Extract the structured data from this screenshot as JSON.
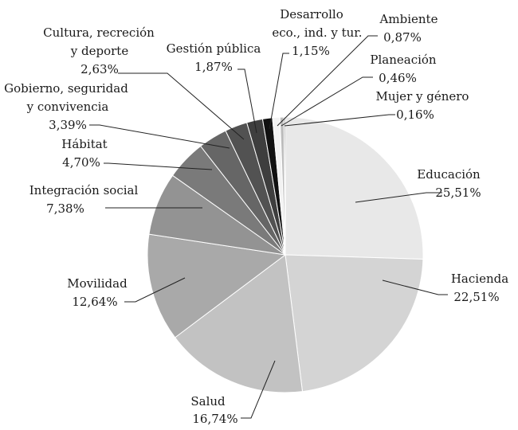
{
  "chart_data": {
    "type": "pie",
    "title": "",
    "slices": [
      {
        "name": "Educación",
        "value": 25.51,
        "label": "25,51%",
        "color": "#e8e8e8"
      },
      {
        "name": "Hacienda",
        "value": 22.51,
        "label": "22,51%",
        "color": "#d4d4d4"
      },
      {
        "name": "Salud",
        "value": 16.74,
        "label": "16,74%",
        "color": "#c2c2c2"
      },
      {
        "name": "Movilidad",
        "value": 12.64,
        "label": "12,64%",
        "color": "#a9a9a9"
      },
      {
        "name": "Integración social",
        "value": 7.38,
        "label": "7,38%",
        "color": "#939393"
      },
      {
        "name": "Hábitat",
        "value": 4.7,
        "label": "4,70%",
        "color": "#7a7a7a"
      },
      {
        "name": "Gobierno, seguridad y convivencia",
        "value": 3.39,
        "label": "3,39%",
        "color": "#666666"
      },
      {
        "name": "Cultura, recreción y deporte",
        "value": 2.63,
        "label": "2,63%",
        "color": "#525252"
      },
      {
        "name": "Gestión pública",
        "value": 1.87,
        "label": "1,87%",
        "color": "#3e3e3e"
      },
      {
        "name": "Desarrollo eco., ind. y tur.",
        "value": 1.15,
        "label": "1,15%",
        "color": "#111111"
      },
      {
        "name": "Ambiente",
        "value": 0.87,
        "label": "0,87%",
        "color": "#f2f2f2"
      },
      {
        "name": "Planeación",
        "value": 0.46,
        "label": "0,46%",
        "color": "#bdbdbd"
      },
      {
        "name": "Mujer y género",
        "value": 0.16,
        "label": "0,16%",
        "color": "#8a8a8a"
      }
    ]
  }
}
